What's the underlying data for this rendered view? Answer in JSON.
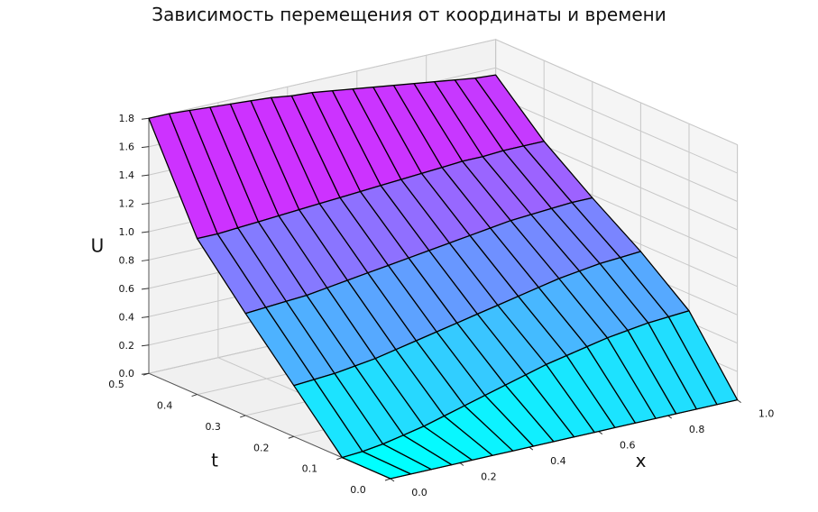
{
  "chart_data": {
    "type": "surface3d",
    "title": "Зависимость перемещения от координаты и времени",
    "xlabel": "x",
    "ylabel": "t",
    "zlabel": "U",
    "xlim": [
      0,
      1
    ],
    "ylim": [
      0,
      0.5
    ],
    "zlim": [
      0,
      1.8
    ],
    "x_ticks": [
      "0.0",
      "0.2",
      "0.4",
      "0.6",
      "0.8",
      "1.0"
    ],
    "t_ticks": [
      "0.0",
      "0.1",
      "0.2",
      "0.3",
      "0.4",
      "0.5"
    ],
    "z_ticks": [
      "0.0",
      "0.2",
      "0.4",
      "0.6",
      "0.8",
      "1.0",
      "1.2",
      "1.4",
      "1.6",
      "1.8"
    ],
    "colormap": [
      "#00ffff",
      "#ff00ff"
    ],
    "edge_color": "#000000",
    "grid": true,
    "x": [
      0.0,
      0.0588,
      0.1176,
      0.1765,
      0.2353,
      0.2941,
      0.3529,
      0.4118,
      0.4706,
      0.5294,
      0.5882,
      0.6471,
      0.7059,
      0.7647,
      0.8235,
      0.8824,
      0.9412,
      1.0
    ],
    "t": [
      0.0,
      0.1,
      0.2,
      0.3,
      0.4,
      0.5
    ],
    "u": [
      [
        0.0,
        0.0,
        0.0,
        0.0,
        0.0,
        0.0,
        0.0,
        0.0,
        0.0,
        0.0,
        0.0,
        0.0,
        0.0,
        0.0,
        0.0,
        0.0,
        0.0,
        0.0
      ],
      [
        0.0,
        0.01,
        0.03,
        0.06,
        0.09,
        0.13,
        0.17,
        0.21,
        0.25,
        0.29,
        0.33,
        0.36,
        0.39,
        0.42,
        0.44,
        0.46,
        0.47,
        0.48
      ],
      [
        0.36,
        0.37,
        0.38,
        0.4,
        0.42,
        0.45,
        0.48,
        0.51,
        0.54,
        0.57,
        0.6,
        0.63,
        0.66,
        0.69,
        0.71,
        0.73,
        0.74,
        0.75
      ],
      [
        0.72,
        0.73,
        0.74,
        0.75,
        0.77,
        0.79,
        0.81,
        0.83,
        0.85,
        0.87,
        0.89,
        0.91,
        0.93,
        0.95,
        0.96,
        0.97,
        0.98,
        0.98
      ],
      [
        1.1,
        1.1,
        1.11,
        1.12,
        1.13,
        1.14,
        1.15,
        1.16,
        1.17,
        1.18,
        1.19,
        1.2,
        1.21,
        1.22,
        1.22,
        1.23,
        1.23,
        1.23
      ],
      [
        1.8,
        1.8,
        1.79,
        1.78,
        1.77,
        1.76,
        1.75,
        1.73,
        1.72,
        1.7,
        1.68,
        1.66,
        1.64,
        1.62,
        1.6,
        1.58,
        1.56,
        1.55
      ]
    ]
  }
}
